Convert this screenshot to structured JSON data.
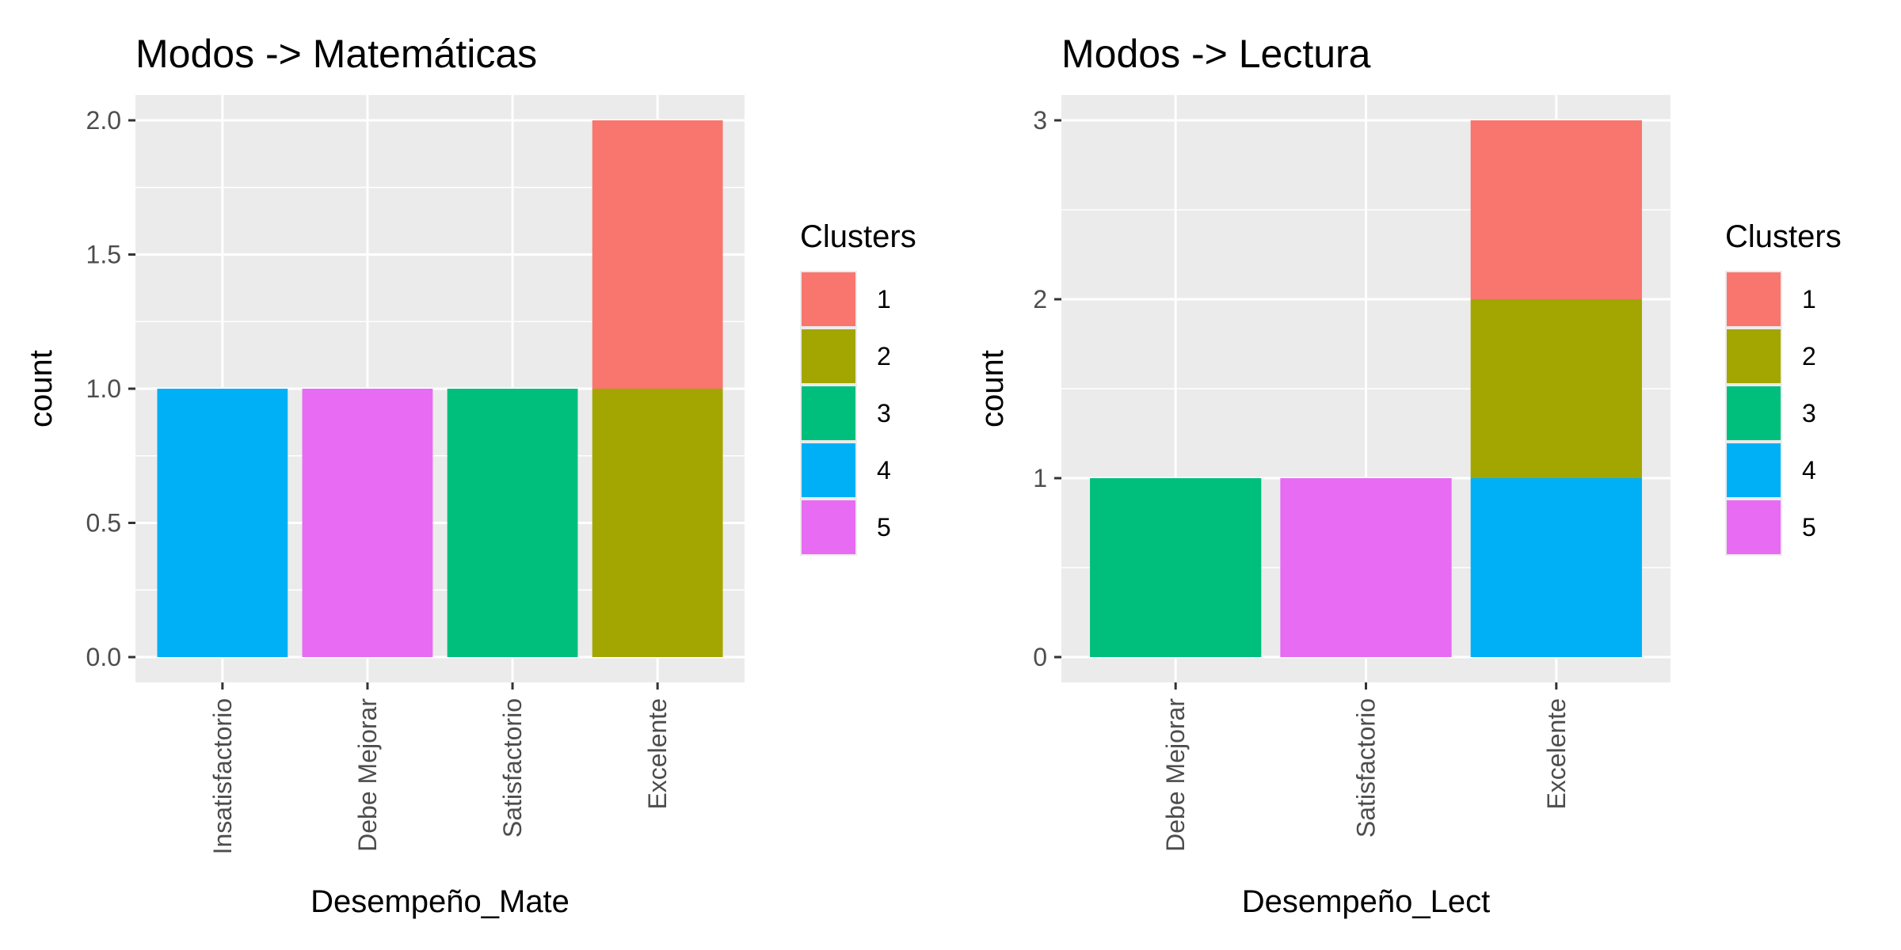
{
  "chart_data": [
    {
      "type": "bar",
      "stacked": true,
      "title": "Modos -> Matemáticas",
      "xlabel": "Desempeño_Mate",
      "ylabel": "count",
      "categories": [
        "Insatisfactorio",
        "Debe Mejorar",
        "Satisfactorio",
        "Excelente"
      ],
      "series": [
        {
          "name": "1",
          "values": [
            0,
            0,
            0,
            1
          ]
        },
        {
          "name": "2",
          "values": [
            0,
            0,
            0,
            1
          ]
        },
        {
          "name": "3",
          "values": [
            0,
            0,
            1,
            0
          ]
        },
        {
          "name": "4",
          "values": [
            1,
            0,
            0,
            0
          ]
        },
        {
          "name": "5",
          "values": [
            0,
            1,
            0,
            0
          ]
        }
      ],
      "ylim": [
        0,
        2
      ],
      "yticks": [
        "0.0",
        "0.5",
        "1.0",
        "1.5",
        "2.0"
      ],
      "ytick_values": [
        0,
        0.5,
        1,
        1.5,
        2
      ],
      "grid": true,
      "legend_title": "Clusters",
      "legend_placement": "right"
    },
    {
      "type": "bar",
      "stacked": true,
      "title": "Modos -> Lectura",
      "xlabel": "Desempeño_Lect",
      "ylabel": "count",
      "categories": [
        "Debe Mejorar",
        "Satisfactorio",
        "Excelente"
      ],
      "series": [
        {
          "name": "1",
          "values": [
            0,
            0,
            1
          ]
        },
        {
          "name": "2",
          "values": [
            0,
            0,
            1
          ]
        },
        {
          "name": "3",
          "values": [
            1,
            0,
            0
          ]
        },
        {
          "name": "4",
          "values": [
            0,
            0,
            1
          ]
        },
        {
          "name": "5",
          "values": [
            0,
            1,
            0
          ]
        }
      ],
      "ylim": [
        0,
        3
      ],
      "yticks": [
        "0",
        "1",
        "2",
        "3"
      ],
      "ytick_values": [
        0,
        1,
        2,
        3
      ],
      "grid": true,
      "legend_title": "Clusters",
      "legend_placement": "right"
    }
  ],
  "colors": {
    "1": "#F8766D",
    "2": "#A3A500",
    "3": "#00BF7D",
    "4": "#00B0F6",
    "5": "#E76BF3",
    "panel_background": "#EBEBEB",
    "grid": "#FFFFFF"
  }
}
